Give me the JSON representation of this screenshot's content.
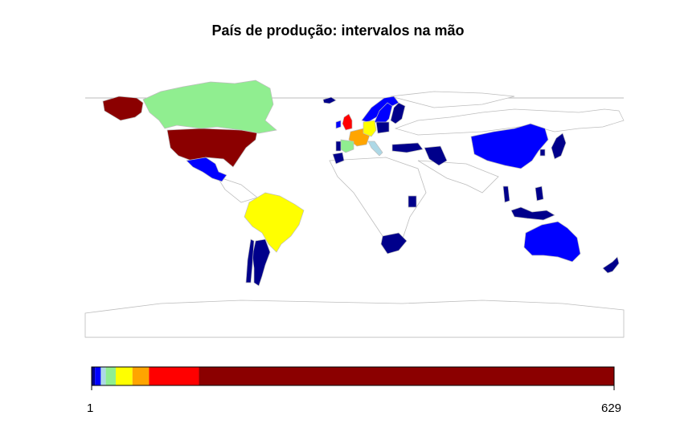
{
  "chart_data": {
    "type": "choropleth-map",
    "title": "País de produção: intervalos na mão",
    "legend": {
      "min_label": "1",
      "max_label": "629",
      "bins": [
        {
          "from": 1,
          "to": 5,
          "color": "#00008B"
        },
        {
          "from": 5,
          "to": 12,
          "color": "#0000FF"
        },
        {
          "from": 12,
          "to": 18,
          "color": "#ADD8E6"
        },
        {
          "from": 18,
          "to": 30,
          "color": "#90EE90"
        },
        {
          "from": 30,
          "to": 50,
          "color": "#FFFF00"
        },
        {
          "from": 50,
          "to": 70,
          "color": "#FFA500"
        },
        {
          "from": 70,
          "to": 130,
          "color": "#FF0000"
        },
        {
          "from": 130,
          "to": 629,
          "color": "#8B0000"
        }
      ]
    },
    "regions": [
      {
        "name": "United States",
        "color": "#8B0000"
      },
      {
        "name": "Greenland",
        "color": "#8B0000"
      },
      {
        "name": "Canada",
        "color": "#90EE90"
      },
      {
        "name": "Mexico",
        "color": "#0000FF"
      },
      {
        "name": "Brazil",
        "color": "#FFFF00"
      },
      {
        "name": "Argentina",
        "color": "#00008B"
      },
      {
        "name": "Chile",
        "color": "#00008B"
      },
      {
        "name": "Iceland",
        "color": "#00008B"
      },
      {
        "name": "Norway",
        "color": "#0000FF"
      },
      {
        "name": "Sweden",
        "color": "#0000FF"
      },
      {
        "name": "Finland",
        "color": "#00008B"
      },
      {
        "name": "United Kingdom",
        "color": "#FF0000"
      },
      {
        "name": "Ireland",
        "color": "#0000FF"
      },
      {
        "name": "France",
        "color": "#FFA500"
      },
      {
        "name": "Spain",
        "color": "#90EE90"
      },
      {
        "name": "Portugal",
        "color": "#00008B"
      },
      {
        "name": "Germany",
        "color": "#FFFF00"
      },
      {
        "name": "Italy",
        "color": "#ADD8E6"
      },
      {
        "name": "Poland",
        "color": "#00008B"
      },
      {
        "name": "Russia",
        "color": "#FFFFFF"
      },
      {
        "name": "Turkey",
        "color": "#00008B"
      },
      {
        "name": "Iran",
        "color": "#00008B"
      },
      {
        "name": "Morocco",
        "color": "#00008B"
      },
      {
        "name": "Kenya",
        "color": "#00008B"
      },
      {
        "name": "South Africa",
        "color": "#00008B"
      },
      {
        "name": "China",
        "color": "#0000FF"
      },
      {
        "name": "Japan",
        "color": "#00008B"
      },
      {
        "name": "South Korea",
        "color": "#00008B"
      },
      {
        "name": "Thailand",
        "color": "#00008B"
      },
      {
        "name": "Philippines",
        "color": "#00008B"
      },
      {
        "name": "Indonesia",
        "color": "#00008B"
      },
      {
        "name": "Australia",
        "color": "#0000FF"
      },
      {
        "name": "New Zealand",
        "color": "#00008B"
      }
    ]
  }
}
